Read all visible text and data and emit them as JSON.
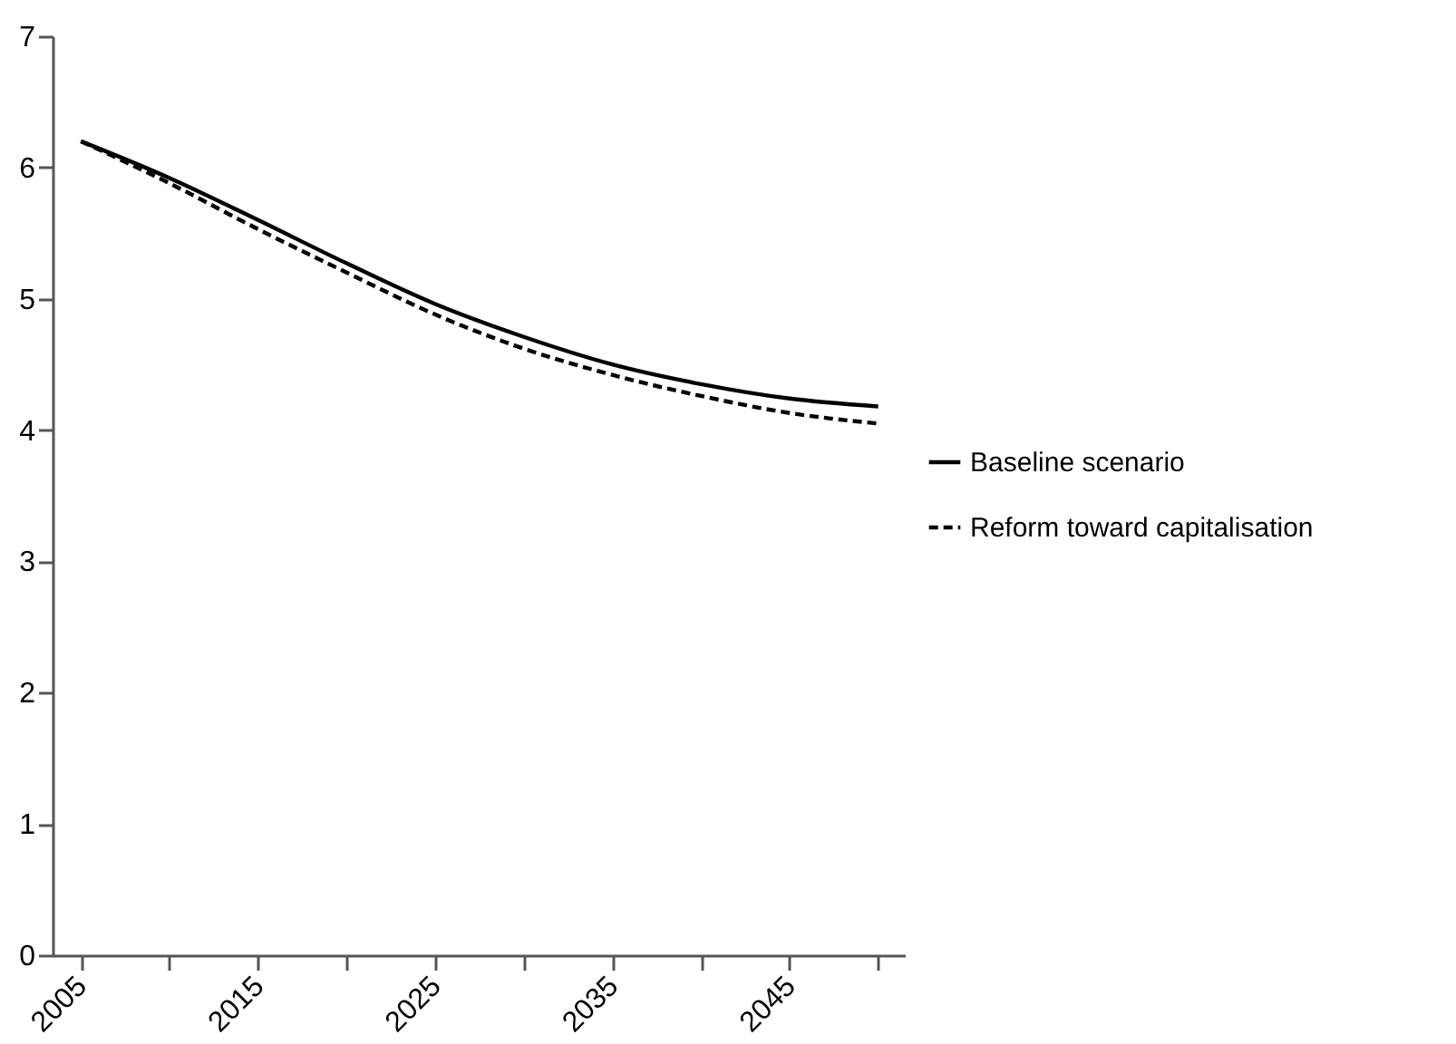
{
  "chart_data": {
    "type": "line",
    "x": [
      2005,
      2010,
      2015,
      2020,
      2025,
      2030,
      2035,
      2040,
      2045,
      2050
    ],
    "series": [
      {
        "name": "Baseline scenario",
        "color": "#000000",
        "line_style": "solid",
        "values": [
          6.2,
          5.92,
          5.6,
          5.27,
          4.96,
          4.71,
          4.5,
          4.35,
          4.24,
          4.18
        ]
      },
      {
        "name": "Reform toward capitalisation",
        "color": "#000000",
        "line_style": "dashed",
        "values": [
          6.2,
          5.88,
          5.53,
          5.2,
          4.88,
          4.62,
          4.42,
          4.26,
          4.13,
          4.05
        ]
      }
    ],
    "xlim": [
      2003.4,
      2051.5
    ],
    "xticks": [
      2005,
      {
        "value": 2010,
        "label": null
      },
      2015,
      {
        "value": 2020,
        "label": null
      },
      2025,
      {
        "value": 2030,
        "label": null
      },
      2035,
      {
        "value": 2040,
        "label": null
      },
      2045,
      {
        "value": 2050,
        "label": null
      }
    ],
    "ylim": [
      0,
      7
    ],
    "yticks": [
      0,
      1,
      2,
      3,
      4,
      5,
      6,
      7
    ],
    "grid": false,
    "legend": "right",
    "marker": "none"
  }
}
